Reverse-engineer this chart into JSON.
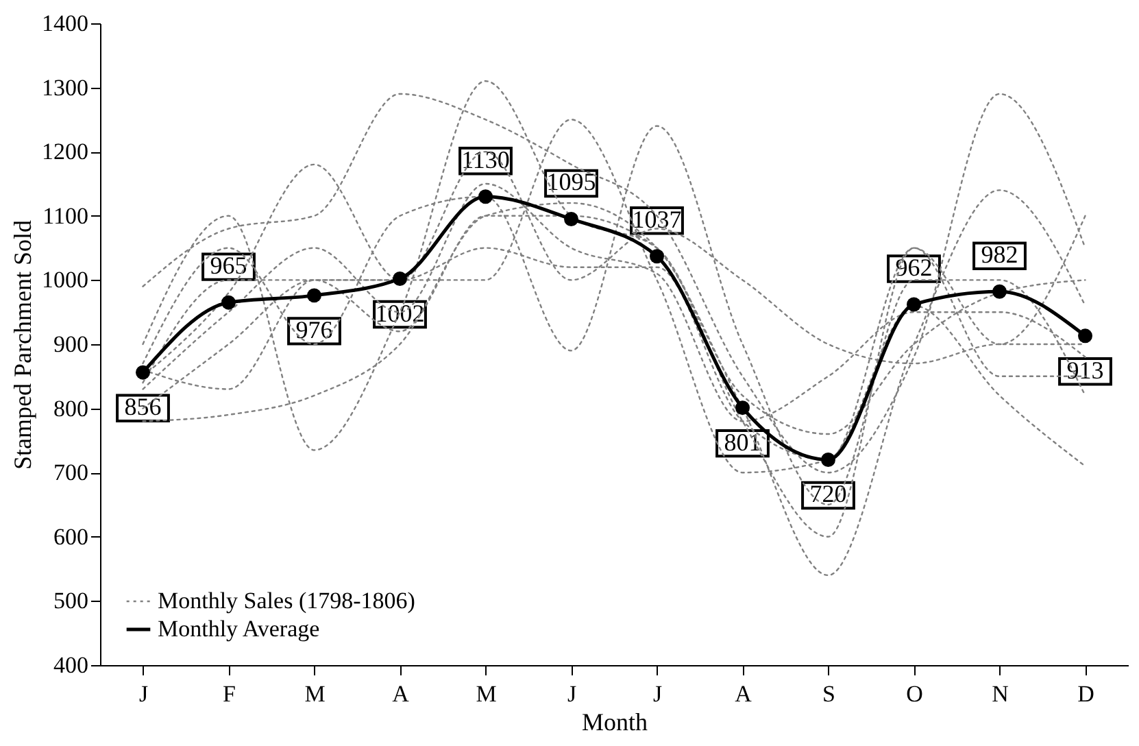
{
  "chart_data": {
    "type": "line",
    "xlabel": "Month",
    "ylabel": "Stamped Parchment Sold",
    "categories": [
      "J",
      "F",
      "M",
      "A",
      "M",
      "J",
      "J",
      "A",
      "S",
      "O",
      "N",
      "D"
    ],
    "ylim": [
      400,
      1400
    ],
    "yticks": [
      400,
      500,
      600,
      700,
      800,
      900,
      1000,
      1100,
      1200,
      1300,
      1400
    ],
    "grid": false,
    "legend": "bottom left",
    "series": [
      {
        "name": "Monthly Sales (1798-1806)",
        "color": "#808080",
        "line_style": "dotted",
        "marker": "none",
        "values": [
          990,
          1080,
          1100,
          1290,
          1250,
          1180,
          1100,
          850,
          700,
          880,
          1290,
          1050
        ]
      },
      {
        "color": "#808080",
        "line_style": "dotted",
        "marker": "none",
        "values": [
          780,
          790,
          820,
          900,
          1100,
          1120,
          1050,
          800,
          540,
          900,
          1140,
          960
        ]
      },
      {
        "color": "#808080",
        "line_style": "dotted",
        "marker": "none",
        "values": [
          900,
          1100,
          735,
          950,
          1310,
          1100,
          1050,
          780,
          600,
          1050,
          900,
          1100
        ]
      },
      {
        "color": "#808080",
        "line_style": "dotted",
        "marker": "none",
        "values": [
          850,
          980,
          1180,
          1000,
          1000,
          1250,
          1000,
          700,
          720,
          960,
          820,
          710
        ]
      },
      {
        "color": "#808080",
        "line_style": "dotted",
        "marker": "none",
        "values": [
          870,
          1050,
          900,
          1100,
          1130,
          890,
          1240,
          900,
          650,
          1000,
          1000,
          820
        ]
      },
      {
        "color": "#808080",
        "line_style": "dotted",
        "marker": "none",
        "values": [
          830,
          950,
          1050,
          950,
          1150,
          1050,
          1010,
          780,
          850,
          950,
          950,
          880
        ]
      },
      {
        "color": "#808080",
        "line_style": "dotted",
        "marker": "none",
        "values": [
          840,
          1000,
          1000,
          920,
          1100,
          1100,
          1050,
          820,
          760,
          900,
          980,
          1000
        ]
      },
      {
        "color": "#808080",
        "line_style": "dotted",
        "marker": "none",
        "values": [
          800,
          900,
          1000,
          1000,
          1200,
          1000,
          1080,
          1000,
          900,
          870,
          900,
          900
        ]
      },
      {
        "color": "#808080",
        "line_style": "dotted",
        "marker": "none",
        "values": [
          860,
          830,
          1000,
          1000,
          1050,
          1020,
          1020,
          780,
          720,
          1050,
          850,
          850
        ]
      },
      {
        "name": "Monthly Average",
        "color": "#000000",
        "line_style": "solid",
        "marker": "circle",
        "data_labels": true,
        "values": [
          856,
          965,
          976,
          1002,
          1130,
          1095,
          1037,
          801,
          720,
          962,
          982,
          913
        ]
      }
    ]
  }
}
